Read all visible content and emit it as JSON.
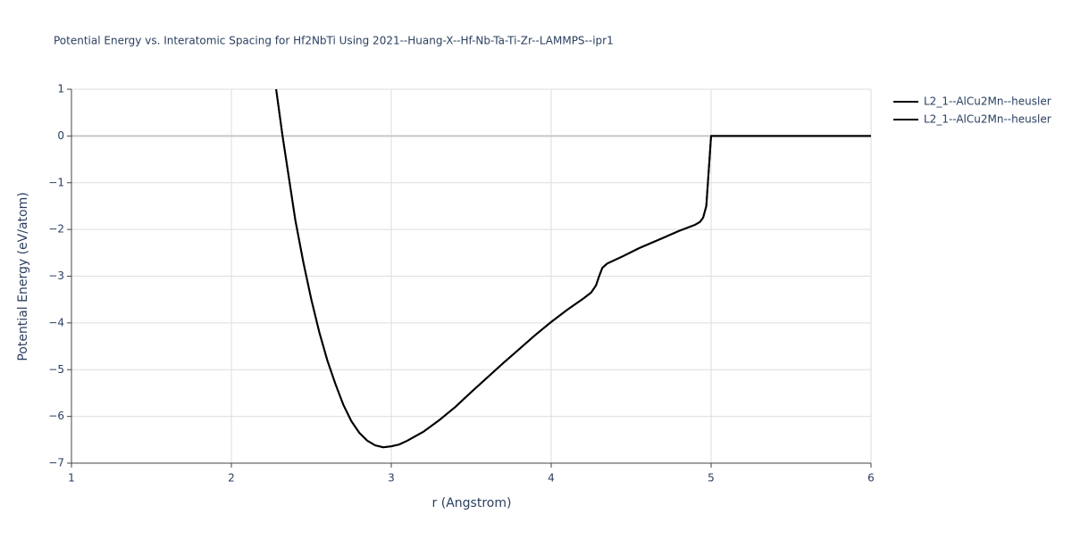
{
  "chart_data": {
    "type": "line",
    "title": "Potential Energy vs. Interatomic Spacing for Hf2NbTi Using 2021--Huang-X--Hf-Nb-Ta-Ti-Zr--LAMMPS--ipr1",
    "x_label": "r (Angstrom)",
    "y_label": "Potential Energy (eV/atom)",
    "x": [
      2.28,
      2.32,
      2.36,
      2.4,
      2.45,
      2.5,
      2.55,
      2.6,
      2.65,
      2.7,
      2.75,
      2.8,
      2.85,
      2.9,
      2.95,
      3.0,
      3.05,
      3.1,
      3.2,
      3.3,
      3.4,
      3.5,
      3.6,
      3.7,
      3.8,
      3.9,
      4.0,
      4.1,
      4.2,
      4.25,
      4.28,
      4.3,
      4.32,
      4.35,
      4.45,
      4.55,
      4.7,
      4.8,
      4.9,
      4.93,
      4.95,
      4.97,
      4.98,
      4.99,
      5.0,
      5.5,
      6.0
    ],
    "series": [
      {
        "name": "L2_1--AlCu2Mn--heusler",
        "color": "#000000",
        "values": [
          1.0,
          0.0,
          -0.9,
          -1.8,
          -2.7,
          -3.5,
          -4.2,
          -4.8,
          -5.3,
          -5.75,
          -6.1,
          -6.35,
          -6.52,
          -6.62,
          -6.66,
          -6.64,
          -6.6,
          -6.52,
          -6.33,
          -6.08,
          -5.8,
          -5.48,
          -5.17,
          -4.86,
          -4.56,
          -4.26,
          -3.98,
          -3.72,
          -3.48,
          -3.35,
          -3.2,
          -3.0,
          -2.82,
          -2.73,
          -2.57,
          -2.4,
          -2.18,
          -2.03,
          -1.9,
          -1.84,
          -1.75,
          -1.5,
          -1.0,
          -0.5,
          0,
          0,
          0
        ]
      },
      {
        "name": "L2_1--AlCu2Mn--heusler",
        "color": "#000000",
        "values": [
          1.0,
          0.0,
          -0.9,
          -1.8,
          -2.7,
          -3.5,
          -4.2,
          -4.8,
          -5.3,
          -5.75,
          -6.1,
          -6.35,
          -6.52,
          -6.62,
          -6.66,
          -6.64,
          -6.6,
          -6.52,
          -6.33,
          -6.08,
          -5.8,
          -5.48,
          -5.17,
          -4.86,
          -4.56,
          -4.26,
          -3.98,
          -3.72,
          -3.48,
          -3.35,
          -3.2,
          -3.0,
          -2.82,
          -2.73,
          -2.57,
          -2.4,
          -2.18,
          -2.03,
          -1.9,
          -1.84,
          -1.75,
          -1.5,
          -1.0,
          -0.5,
          0,
          0,
          0
        ]
      }
    ],
    "xlim": [
      1,
      6
    ],
    "xticks": [
      1,
      2,
      3,
      4,
      5,
      6
    ],
    "ylim": [
      -7,
      1
    ],
    "yticks": [
      {
        "value": -7,
        "label": "−7"
      },
      {
        "value": -6,
        "label": "−6"
      },
      {
        "value": -5,
        "label": "−5"
      },
      {
        "value": -4,
        "label": "−4"
      },
      {
        "value": -3,
        "label": "−3"
      },
      {
        "value": -2,
        "label": "−2"
      },
      {
        "value": -1,
        "label": "−1"
      },
      0,
      1
    ],
    "grid": true,
    "legend": "right"
  }
}
